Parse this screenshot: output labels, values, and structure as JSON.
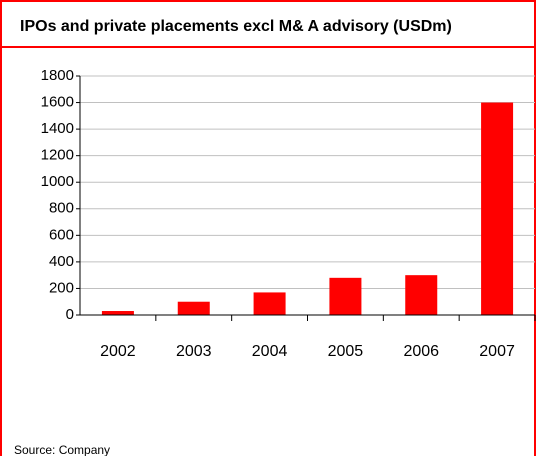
{
  "chart_data": {
    "type": "bar",
    "title": "IPOs and private placements excl M& A advisory (USDm)",
    "categories": [
      "2002",
      "2003",
      "2004",
      "2005",
      "2006",
      "2007"
    ],
    "values": [
      30,
      100,
      170,
      280,
      300,
      1600
    ],
    "color": "#ff0000",
    "ylim": [
      0,
      1800
    ],
    "yticks": [
      0,
      200,
      400,
      600,
      800,
      1000,
      1200,
      1400,
      1600,
      1800
    ],
    "grid": true,
    "source": "Source: Company"
  }
}
